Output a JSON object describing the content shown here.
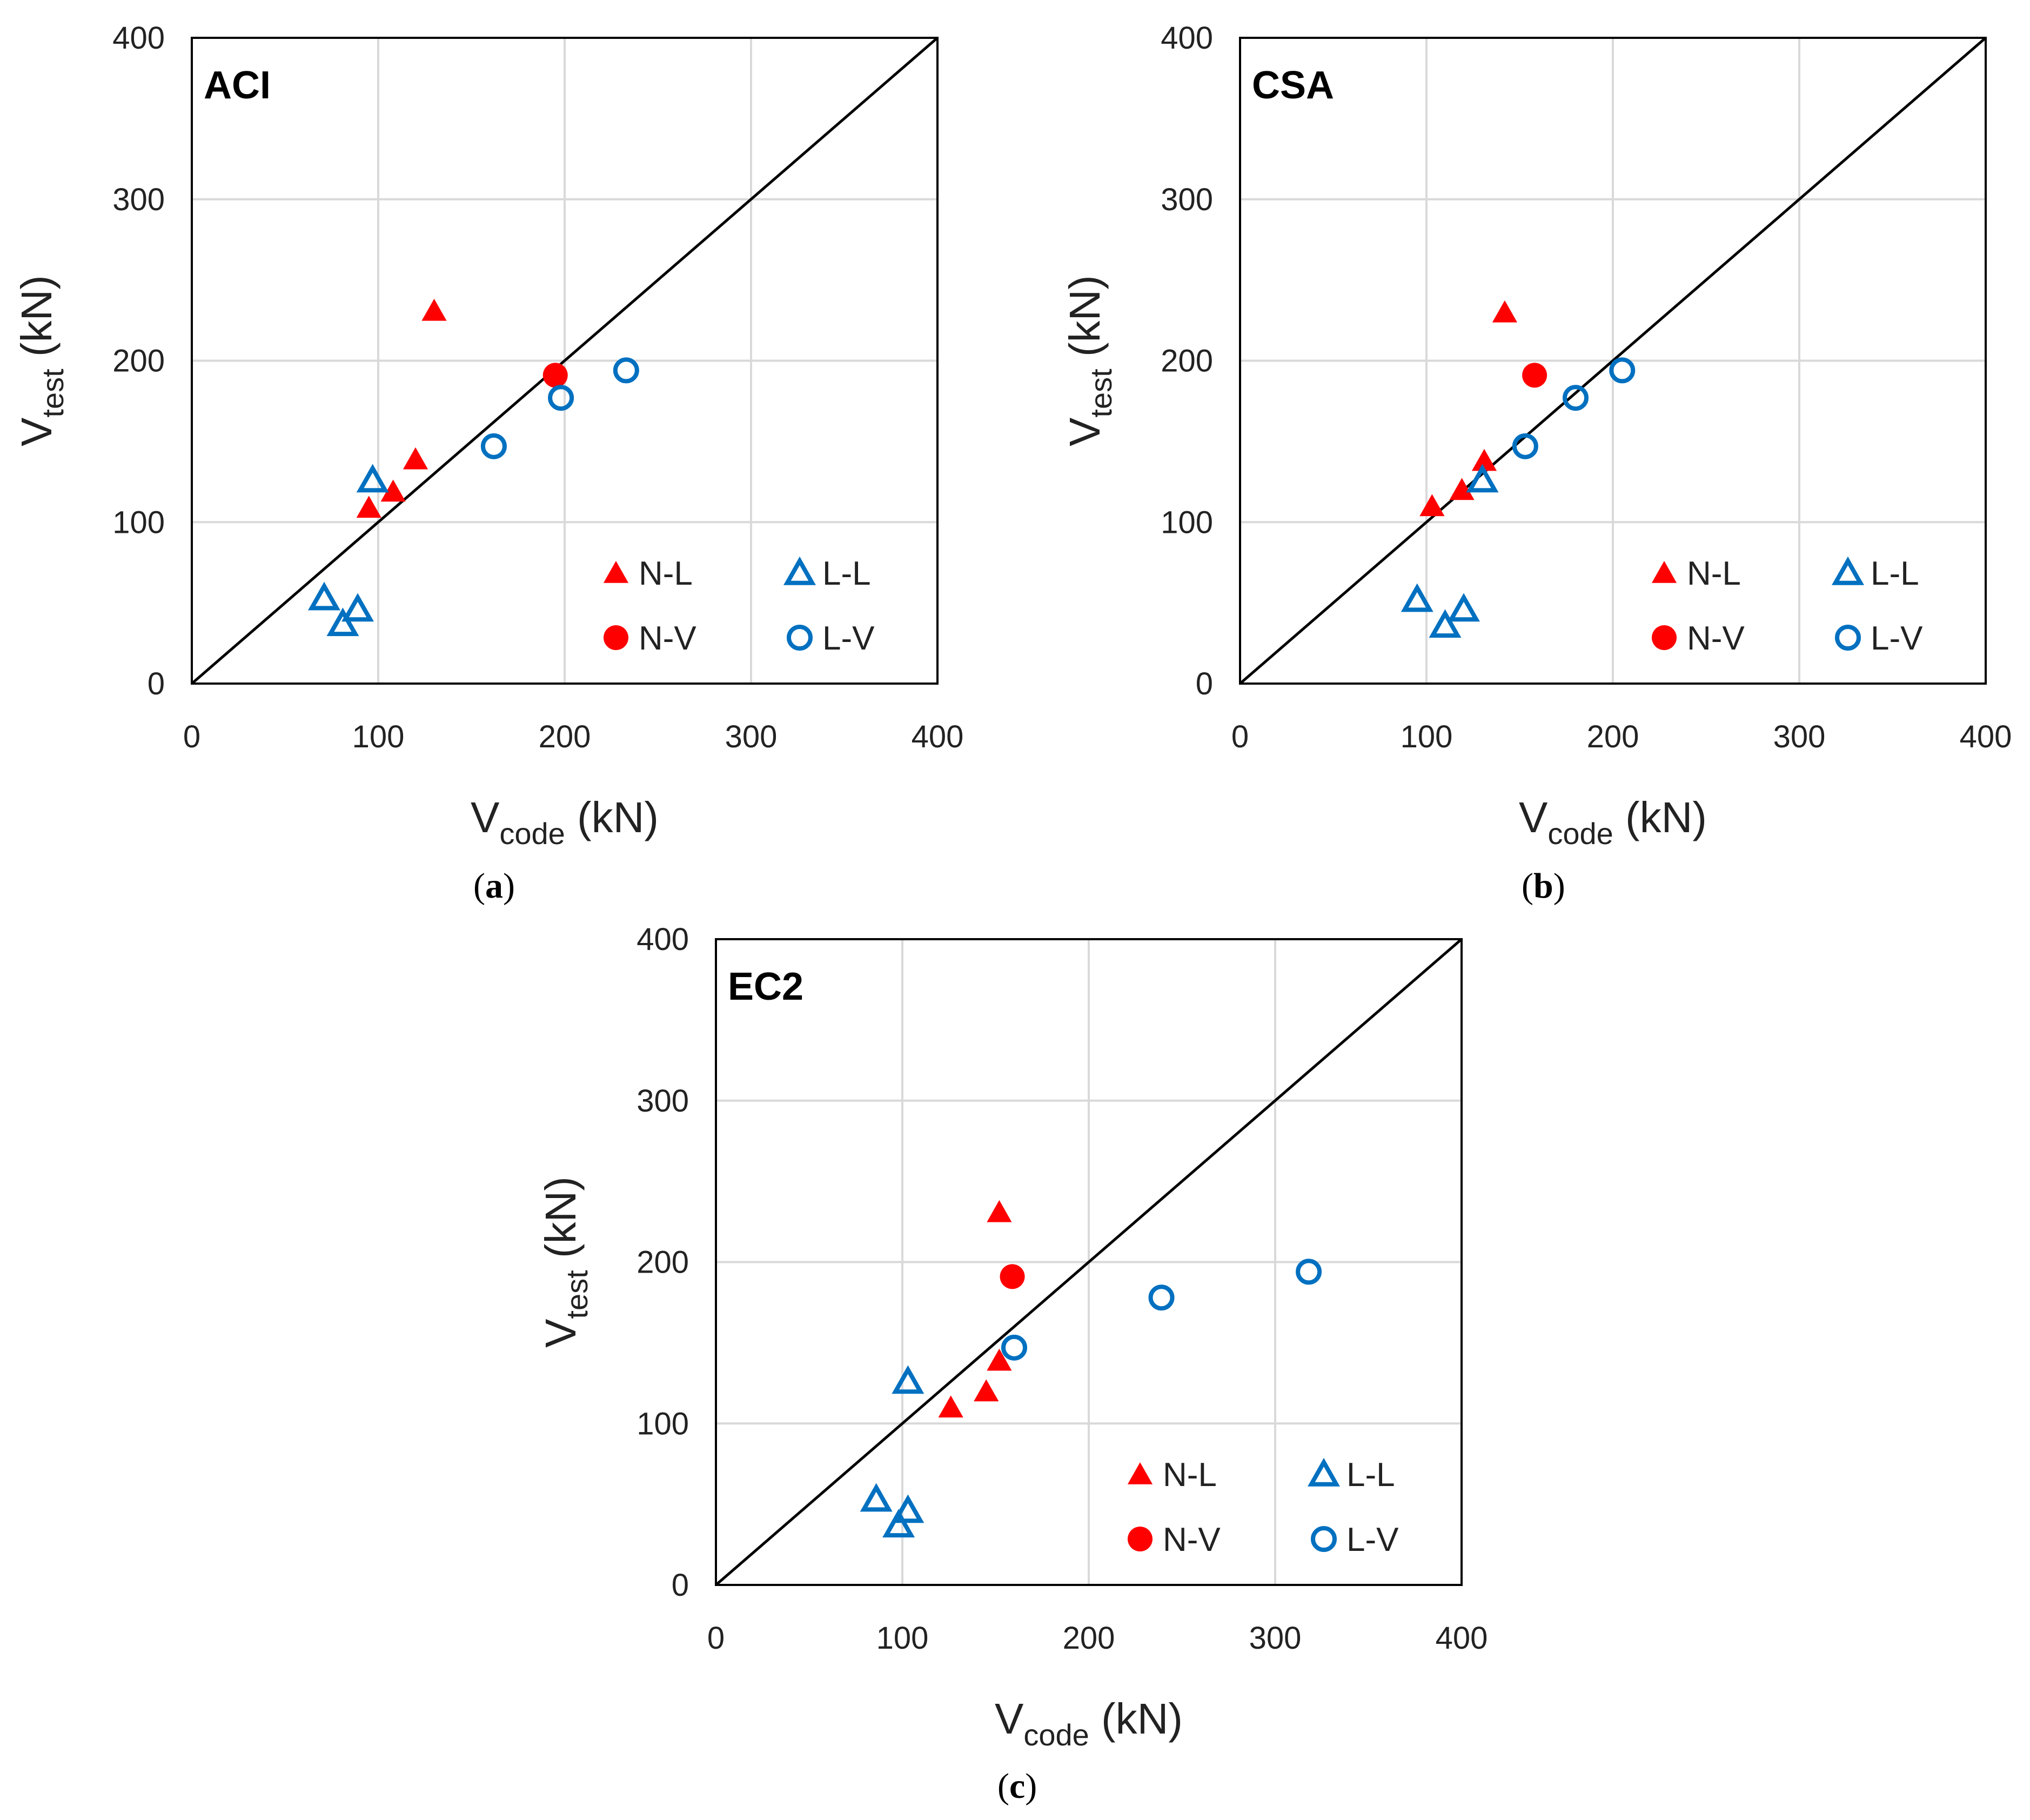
{
  "colors": {
    "native": "#ff0000",
    "lightweight": "#0070c0",
    "line": "#000000",
    "grid": "#d9d9d9"
  },
  "chart_data": [
    {
      "type": "scatter",
      "title": "ACI",
      "caption": {
        "letter": "a"
      },
      "xlabel": {
        "main": "V",
        "sub": "code",
        "unit": "(kN)"
      },
      "ylabel": {
        "main": "V",
        "sub": "test",
        "unit": "(kN)"
      },
      "xlim": [
        0,
        400
      ],
      "ylim": [
        0,
        400
      ],
      "xticks": [
        "0",
        "100",
        "200",
        "300",
        "400"
      ],
      "yticks": [
        "0",
        "100",
        "200",
        "300",
        "400"
      ],
      "reference_line": "y = x",
      "series": [
        {
          "name": "N-L",
          "marker": "filled-triangle",
          "color": "#ff0000",
          "points": [
            [
              130,
              231
            ],
            [
              95,
              109
            ],
            [
              108,
              119
            ],
            [
              120,
              139
            ]
          ]
        },
        {
          "name": "N-V",
          "marker": "filled-circle",
          "color": "#ff0000",
          "points": [
            [
              195,
              191
            ]
          ]
        },
        {
          "name": "L-L",
          "marker": "open-triangle",
          "color": "#0070c0",
          "points": [
            [
              71,
              53
            ],
            [
              81,
              37
            ],
            [
              89,
              46
            ],
            [
              97,
              126
            ]
          ]
        },
        {
          "name": "L-V",
          "marker": "open-circle",
          "color": "#0070c0",
          "points": [
            [
              162,
              147
            ],
            [
              198,
              177
            ],
            [
              233,
              194
            ]
          ]
        }
      ]
    },
    {
      "type": "scatter",
      "title": "CSA",
      "caption": {
        "letter": "b"
      },
      "xlabel": {
        "main": "V",
        "sub": "code",
        "unit": "(kN)"
      },
      "ylabel": {
        "main": "V",
        "sub": "test",
        "unit": "(kN)"
      },
      "xlim": [
        0,
        400
      ],
      "ylim": [
        0,
        400
      ],
      "xticks": [
        "0",
        "100",
        "200",
        "300",
        "400"
      ],
      "yticks": [
        "0",
        "100",
        "200",
        "300",
        "400"
      ],
      "reference_line": "y = x",
      "series": [
        {
          "name": "N-L",
          "marker": "filled-triangle",
          "color": "#ff0000",
          "points": [
            [
              142,
              230
            ],
            [
              103,
              110
            ],
            [
              119,
              120
            ],
            [
              131,
              138
            ]
          ]
        },
        {
          "name": "N-V",
          "marker": "filled-circle",
          "color": "#ff0000",
          "points": [
            [
              158,
              191
            ]
          ]
        },
        {
          "name": "L-L",
          "marker": "open-triangle",
          "color": "#0070c0",
          "points": [
            [
              95,
              52
            ],
            [
              110,
              36
            ],
            [
              120,
              46
            ],
            [
              130,
              126
            ]
          ]
        },
        {
          "name": "L-V",
          "marker": "open-circle",
          "color": "#0070c0",
          "points": [
            [
              153,
              147
            ],
            [
              180,
              177
            ],
            [
              205,
              194
            ]
          ]
        }
      ]
    },
    {
      "type": "scatter",
      "title": "EC2",
      "caption": {
        "letter": "c"
      },
      "xlabel": {
        "main": "V",
        "sub": "code",
        "unit": "(kN)"
      },
      "ylabel": {
        "main": "V",
        "sub": "test",
        "unit": "(kN)"
      },
      "xlim": [
        0,
        400
      ],
      "ylim": [
        0,
        400
      ],
      "xticks": [
        "0",
        "100",
        "200",
        "300",
        "400"
      ],
      "yticks": [
        "0",
        "100",
        "200",
        "300",
        "400"
      ],
      "reference_line": "y = x",
      "series": [
        {
          "name": "N-L",
          "marker": "filled-triangle",
          "color": "#ff0000",
          "points": [
            [
              152,
              231
            ],
            [
              126,
              110
            ],
            [
              145,
              120
            ],
            [
              152,
              139
            ]
          ]
        },
        {
          "name": "N-V",
          "marker": "filled-circle",
          "color": "#ff0000",
          "points": [
            [
              159,
              191
            ]
          ]
        },
        {
          "name": "L-L",
          "marker": "open-triangle",
          "color": "#0070c0",
          "points": [
            [
              86,
              53
            ],
            [
              98,
              37
            ],
            [
              103,
              46
            ],
            [
              103,
              126
            ]
          ]
        },
        {
          "name": "L-V",
          "marker": "open-circle",
          "color": "#0070c0",
          "points": [
            [
              160,
              147
            ],
            [
              239,
              178
            ],
            [
              318,
              194
            ]
          ]
        }
      ]
    }
  ]
}
